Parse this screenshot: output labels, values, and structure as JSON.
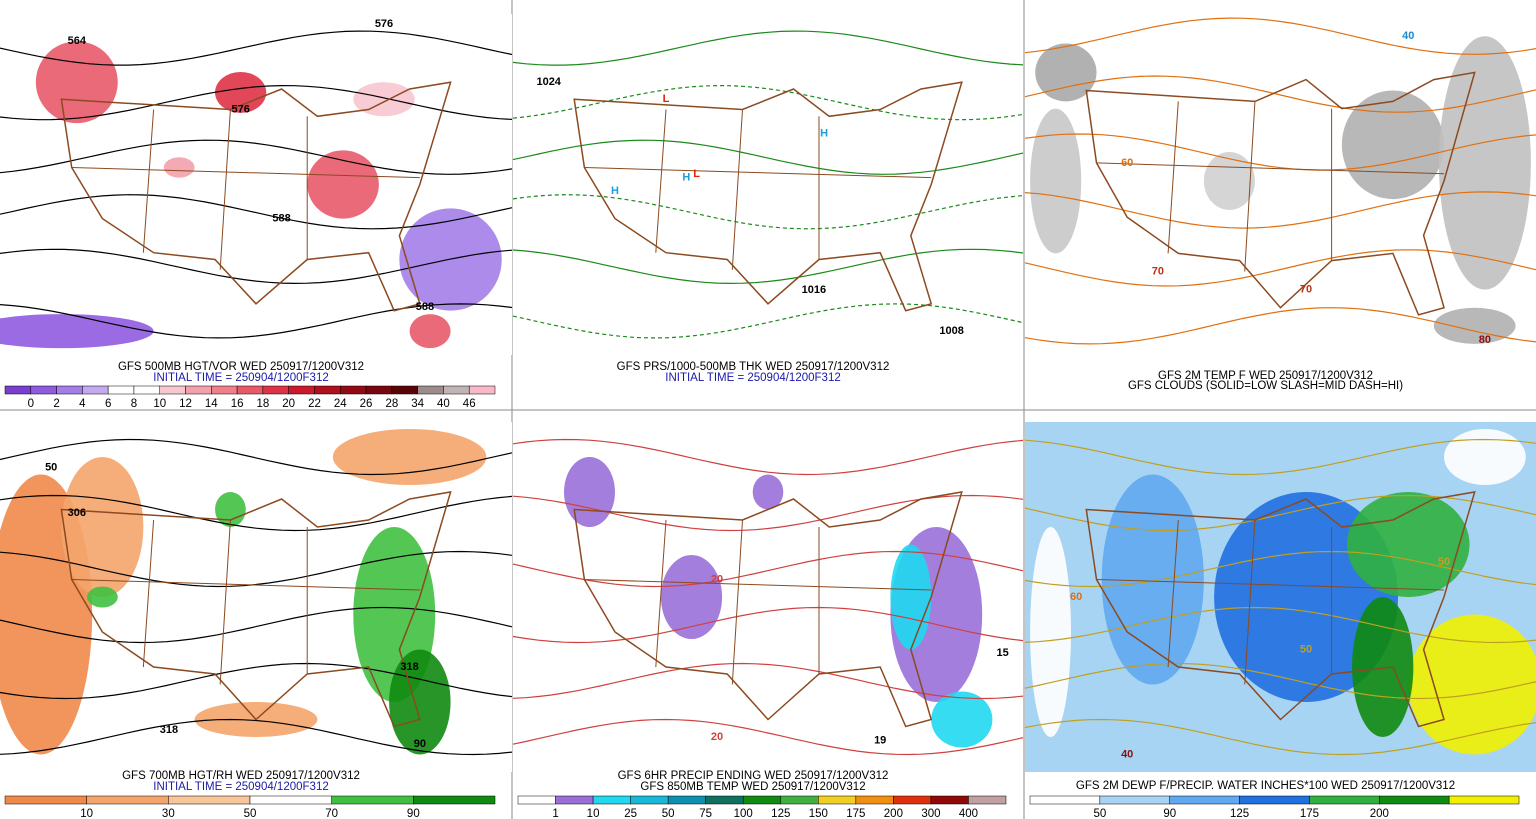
{
  "panels": [
    {
      "captions": [
        {
          "text": "GFS 500MB HGT/VOR WED 250917/1200V312",
          "color": "#000000"
        },
        {
          "text": "INITIAL TIME = 250904/1200F312",
          "color": "#1a1aa8"
        }
      ],
      "map_labels": [
        {
          "text": "576",
          "color": "#000000"
        },
        {
          "text": "564",
          "color": "#000000"
        },
        {
          "text": "576",
          "color": "#000000"
        },
        {
          "text": "588",
          "color": "#000000"
        },
        {
          "text": "588",
          "color": "#000000"
        }
      ],
      "colorbar": {
        "labels": [
          "0",
          "2",
          "4",
          "6",
          "8",
          "10",
          "12",
          "14",
          "16",
          "18",
          "20",
          "22",
          "24",
          "26",
          "28",
          "34",
          "40",
          "46"
        ],
        "colors": [
          "#7a3fd0",
          "#8f5be0",
          "#a47ee8",
          "#c2a9f0",
          "#ffffff",
          "#ffffff",
          "#f6c7cf",
          "#f2a1ac",
          "#ee7f8b",
          "#e85a6a",
          "#de3346",
          "#cc1a2c",
          "#b00f1e",
          "#920a14",
          "#78060e",
          "#5a0408",
          "#9c8c8c",
          "#c0b4b4",
          "#f8b8c8"
        ]
      }
    },
    {
      "captions": [
        {
          "text": "GFS PRS/1000-500MB THK WED 250917/1200V312",
          "color": "#000000"
        },
        {
          "text": "INITIAL TIME = 250904/1200F312",
          "color": "#1a1aa8"
        }
      ],
      "map_labels": [
        {
          "text": "L",
          "color": "#e02010"
        },
        {
          "text": "L",
          "color": "#e02010"
        },
        {
          "text": "H",
          "color": "#1aa0e0"
        },
        {
          "text": "H",
          "color": "#1aa0e0"
        },
        {
          "text": "H",
          "color": "#1aa0e0"
        },
        {
          "text": "1016",
          "color": "#000000"
        },
        {
          "text": "1024",
          "color": "#000000"
        },
        {
          "text": "1008",
          "color": "#000000"
        }
      ]
    },
    {
      "captions": [
        {
          "text": "GFS 2M TEMP F WED 250917/1200V312",
          "color": "#000000"
        },
        {
          "text": "GFS CLOUDS (SOLID=LOW SLASH=MID DASH=HI)",
          "color": "#000000"
        }
      ],
      "map_labels": [
        {
          "text": "60",
          "color": "#e07010"
        },
        {
          "text": "70",
          "color": "#c03010"
        },
        {
          "text": "80",
          "color": "#8a1010"
        },
        {
          "text": "40",
          "color": "#1a8ad0"
        },
        {
          "text": "70",
          "color": "#c03010"
        }
      ]
    },
    {
      "captions": [
        {
          "text": "GFS 700MB HGT/RH WED 250917/1200V312",
          "color": "#000000"
        },
        {
          "text": "INITIAL TIME = 250904/1200F312",
          "color": "#1a1aa8"
        }
      ],
      "map_labels": [
        {
          "text": "50",
          "color": "#000000"
        },
        {
          "text": "306",
          "color": "#000000"
        },
        {
          "text": "318",
          "color": "#000000"
        },
        {
          "text": "90",
          "color": "#000000"
        },
        {
          "text": "318",
          "color": "#000000"
        }
      ],
      "colorbar": {
        "labels": [
          "10",
          "30",
          "50",
          "70",
          "90"
        ],
        "colors": [
          "#f08a4a",
          "#f4a56c",
          "#f8c49a",
          "#ffffff",
          "#40c040",
          "#108a10"
        ]
      }
    },
    {
      "captions": [
        {
          "text": "GFS 6HR PRECIP ENDING WED 250917/1200V312",
          "color": "#000000"
        },
        {
          "text": "GFS 850MB TEMP WED 250917/1200V312",
          "color": "#000000"
        }
      ],
      "map_labels": [
        {
          "text": "20",
          "color": "#d04040"
        },
        {
          "text": "15",
          "color": "#000000"
        },
        {
          "text": "20",
          "color": "#d04040"
        },
        {
          "text": "19",
          "color": "#000000"
        }
      ],
      "colorbar": {
        "labels": [
          "1",
          "10",
          "25",
          "50",
          "75",
          "100",
          "125",
          "150",
          "175",
          "200",
          "300",
          "400"
        ],
        "colors": [
          "#ffffff",
          "#9a70d8",
          "#20d8f0",
          "#18b8d8",
          "#1090b0",
          "#107060",
          "#108a10",
          "#40b040",
          "#f0d020",
          "#f09010",
          "#e03010",
          "#900808",
          "#c0a0a0"
        ]
      }
    },
    {
      "captions": [
        {
          "text": "GFS 2M DEWP F/PRECIP. WATER INCHES*100 WED 250917/1200V312",
          "color": "#000000"
        }
      ],
      "map_labels": [
        {
          "text": "40",
          "color": "#8a1010"
        },
        {
          "text": "50",
          "color": "#c0a020"
        },
        {
          "text": "60",
          "color": "#e07010"
        },
        {
          "text": "50",
          "color": "#c0a020"
        }
      ],
      "colorbar": {
        "labels": [
          "50",
          "90",
          "125",
          "175",
          "200"
        ],
        "colors": [
          "#ffffff",
          "#a8d4f4",
          "#60a8f0",
          "#2070e0",
          "#30b040",
          "#108a10",
          "#f0f000"
        ]
      }
    }
  ]
}
